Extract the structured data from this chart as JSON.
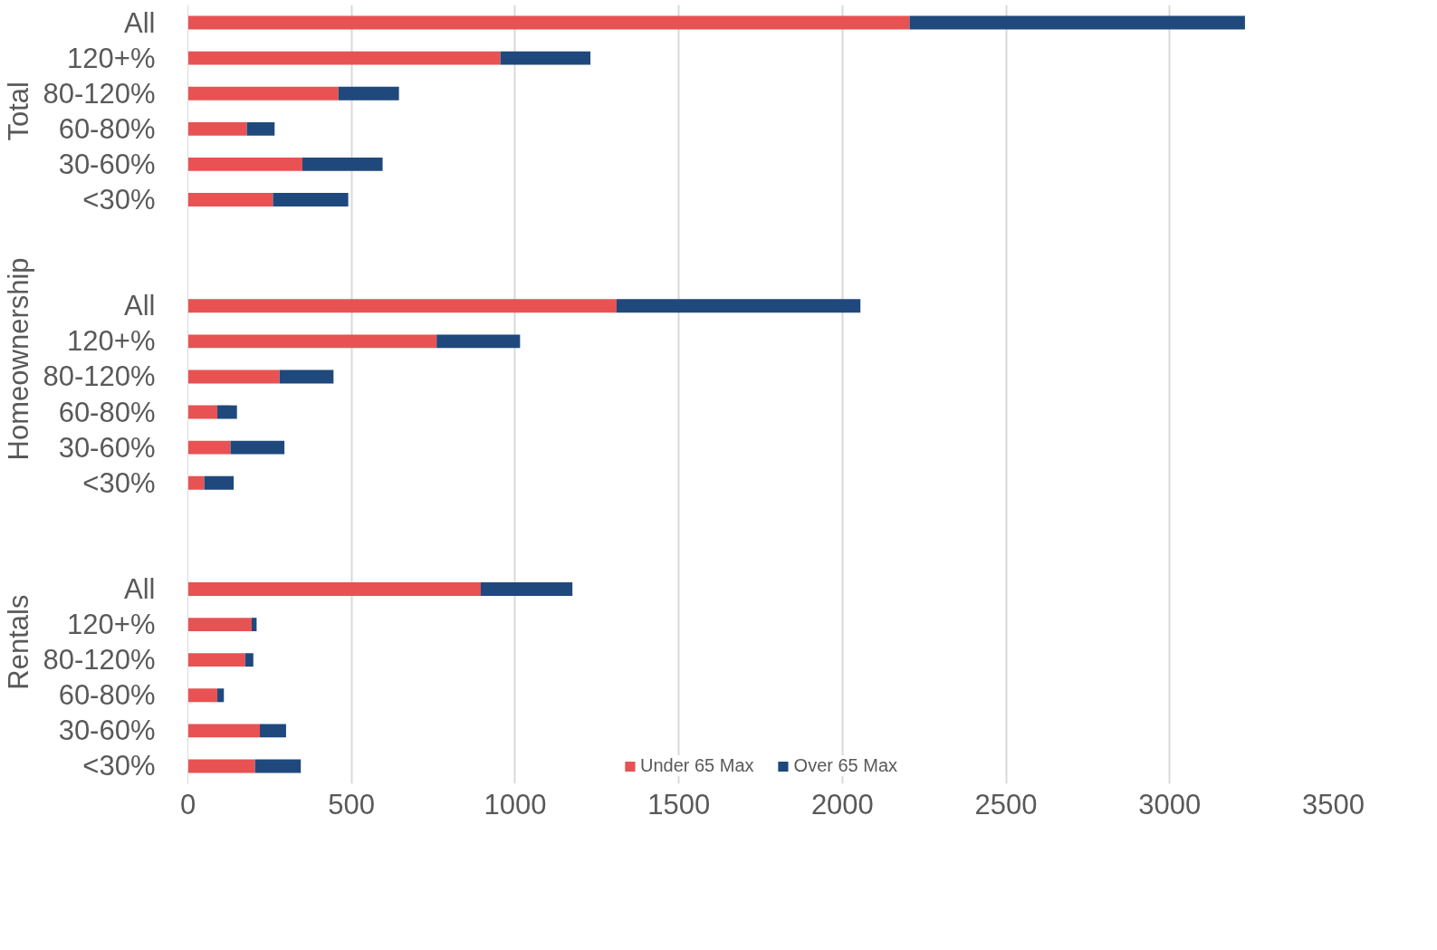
{
  "chart_data": {
    "type": "bar",
    "orientation": "horizontal",
    "stacked": true,
    "categories": [
      "All",
      "120+%",
      "80-120%",
      "60-80%",
      "30-60%",
      "<30%",
      null,
      null,
      "All",
      "120+%",
      "80-120%",
      "60-80%",
      "30-60%",
      "<30%",
      null,
      null,
      "All",
      "120+%",
      "80-120%",
      "60-80%",
      "30-60%",
      "<30%"
    ],
    "series": [
      {
        "name": "Under 65 Max",
        "color": "#e85253",
        "values": [
          2205,
          955,
          460,
          180,
          350,
          260,
          null,
          null,
          1310,
          760,
          280,
          90,
          130,
          50,
          null,
          null,
          895,
          195,
          175,
          90,
          220,
          205
        ]
      },
      {
        "name": "Over 65 Max",
        "color": "#1f497d",
        "values": [
          1025,
          275,
          185,
          85,
          245,
          230,
          null,
          null,
          745,
          255,
          165,
          60,
          165,
          90,
          null,
          null,
          280,
          15,
          25,
          20,
          80,
          140
        ]
      }
    ],
    "annotations": [
      "Total",
      "Homeownership",
      "Rentals"
    ],
    "xlim": [
      0,
      3500
    ],
    "xticks": [
      0,
      500,
      1000,
      1500,
      2000,
      2500,
      3000,
      3500
    ],
    "grid": "x",
    "legend": "bottom"
  }
}
